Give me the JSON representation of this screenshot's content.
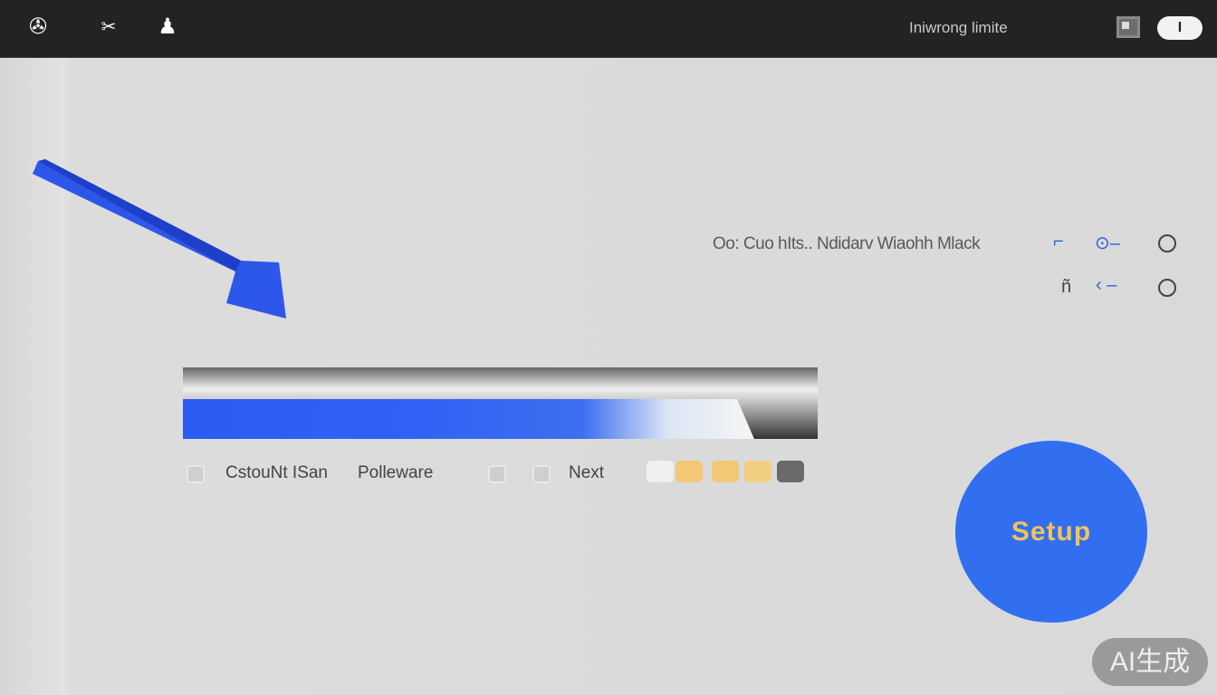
{
  "topbar": {
    "icons": [
      "globe-icon",
      "scissors-icon",
      "user-icon"
    ],
    "title": "Iniwrong limite",
    "toggle_label": "I"
  },
  "options": {
    "row1_label": "Oo: Cuo hIts.. Ndidarv Wiaohh Mlack",
    "row2_glyph": "ñ"
  },
  "progress": {
    "value_percent": 90,
    "accent": "#2f62f5"
  },
  "controls": {
    "label1": "CstouNt ISan",
    "label2": "Polleware",
    "next": "Next",
    "swatches": [
      "#f0f0f0",
      "#f2c874",
      "#f2c874",
      "#f2cf80",
      "#6a6a6a"
    ]
  },
  "setup_button": {
    "label": "Setup",
    "bg": "#316ff0",
    "text_color": "#f3c25a"
  },
  "watermark": "AI生成"
}
